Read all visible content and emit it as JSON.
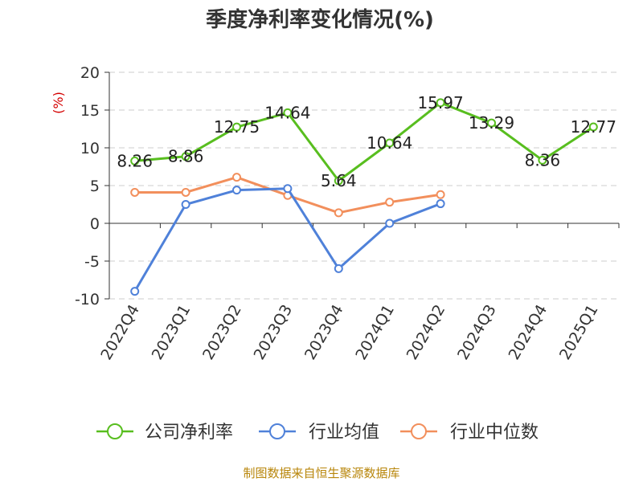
{
  "chart_data": {
    "type": "line",
    "title": "季度净利率变化情况(%)",
    "ylabel": "(%)",
    "xlabel": "",
    "ylim": [
      -10,
      20
    ],
    "yticks": [
      20,
      15,
      10,
      5,
      0,
      -5,
      -10
    ],
    "grid": true,
    "legend_position": "bottom",
    "categories": [
      "2022Q4",
      "2023Q1",
      "2023Q2",
      "2023Q3",
      "2023Q4",
      "2024Q1",
      "2024Q2",
      "2024Q3",
      "2024Q4",
      "2025Q1"
    ],
    "series": [
      {
        "name": "公司净利率",
        "color": "#58be1f",
        "values": [
          8.26,
          8.86,
          12.75,
          14.64,
          5.64,
          10.64,
          15.97,
          13.29,
          8.36,
          12.77
        ],
        "labels": [
          "8.26",
          "8.86",
          "12.75",
          "14.64",
          "5.64",
          "10.64",
          "15.97",
          "13.29",
          "8.36",
          "12.77"
        ]
      },
      {
        "name": "行业均值",
        "color": "#4f81d9",
        "values": [
          -9.0,
          2.5,
          4.4,
          4.6,
          -6.0,
          0.0,
          2.6,
          null,
          null,
          null
        ]
      },
      {
        "name": "行业中位数",
        "color": "#f28f5c",
        "values": [
          4.1,
          4.1,
          6.1,
          3.7,
          1.4,
          2.8,
          3.8,
          null,
          null,
          null
        ]
      }
    ]
  },
  "source_text": "制图数据来自恒生聚源数据库",
  "colors": {
    "axis": "#333333",
    "grid": "#cccccc",
    "ylabel": "#d40000",
    "source": "#b8860b"
  }
}
